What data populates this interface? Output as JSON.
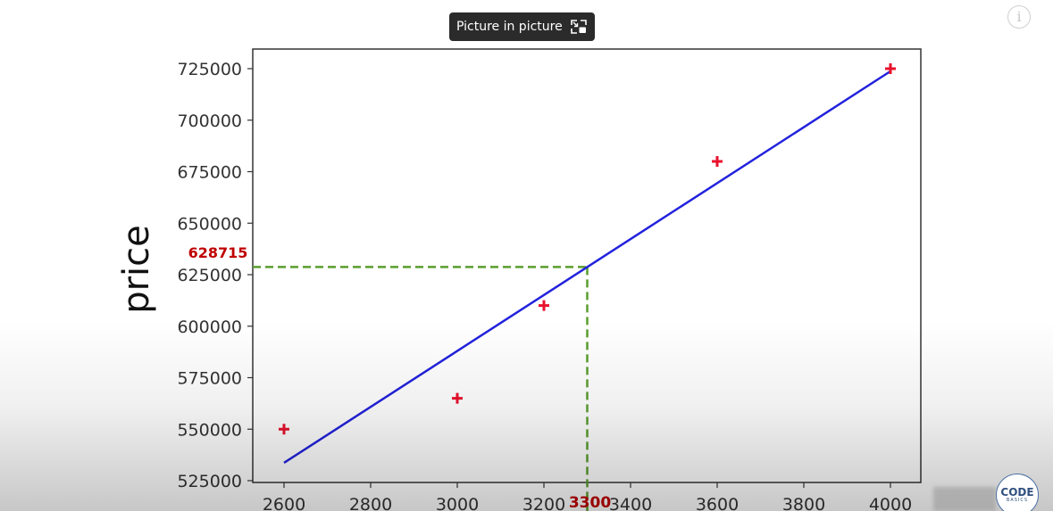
{
  "overlay": {
    "pip_label": "Picture in picture",
    "pip_icon": "picture-in-picture-icon",
    "info_icon": "info-icon",
    "info_glyph": "i",
    "logo_main": "CODE",
    "logo_sub": "BASICS"
  },
  "chart_data": {
    "type": "scatter",
    "title": "",
    "xlabel": "",
    "ylabel": "price",
    "xlim": [
      2530,
      4070
    ],
    "ylim": [
      522000,
      730000
    ],
    "xticks": [
      2600,
      2800,
      3000,
      3200,
      3400,
      3600,
      3800,
      4000
    ],
    "yticks": [
      525000,
      550000,
      575000,
      600000,
      625000,
      650000,
      675000,
      700000,
      725000
    ],
    "series": [
      {
        "kind": "scatter",
        "marker": "+",
        "color": "#e8112d",
        "x": [
          2600,
          3000,
          3200,
          3600,
          4000
        ],
        "y": [
          550000,
          565000,
          610000,
          680000,
          725000
        ]
      },
      {
        "kind": "line",
        "color": "#2222dd",
        "x": [
          2600,
          4000
        ],
        "y": [
          533664,
          723760
        ]
      }
    ],
    "guides": {
      "color": "#5a9e2e",
      "x": 3300,
      "y": 628715,
      "x_label": "3300",
      "y_label": "628715",
      "label_color": "#c00000"
    },
    "grid": false,
    "legend": "none"
  }
}
